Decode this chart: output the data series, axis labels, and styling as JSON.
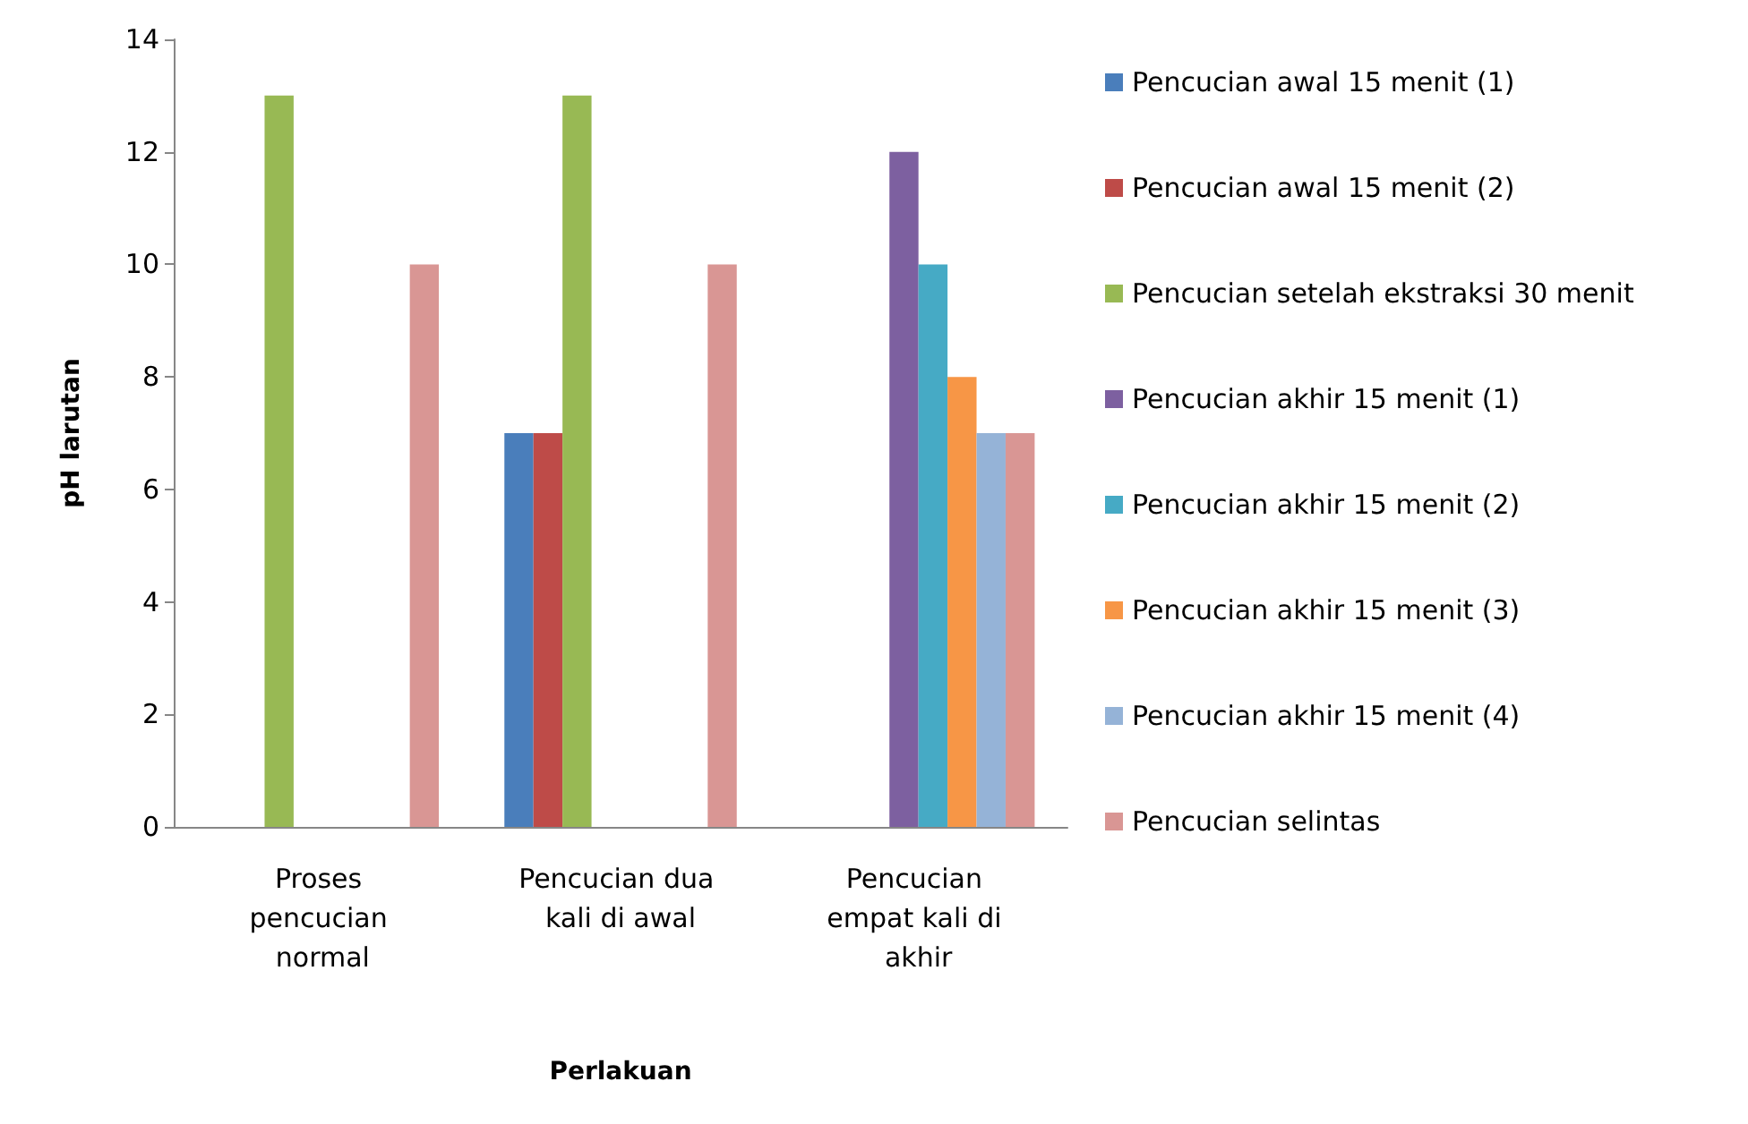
{
  "chart_data": {
    "type": "bar",
    "xlabel": "Perlakuan",
    "ylabel": "pH larutan",
    "categories": [
      "Proses pencucian normal",
      "Pencucian dua kali di awal",
      "Pencucian empat kali di akhir"
    ],
    "series": [
      {
        "name": "Pencucian awal 15 menit (1)",
        "color": "#4a7ebb",
        "values": [
          null,
          7,
          null
        ]
      },
      {
        "name": "Pencucian awal 15 menit (2)",
        "color": "#be4b48",
        "values": [
          null,
          7,
          null
        ]
      },
      {
        "name": "Pencucian setelah ekstraksi 30 menit",
        "color": "#98b954",
        "values": [
          13,
          13,
          null
        ]
      },
      {
        "name": "Pencucian akhir 15 menit (1)",
        "color": "#7d60a0",
        "values": [
          null,
          null,
          12
        ]
      },
      {
        "name": "Pencucian akhir 15 menit (2)",
        "color": "#46aac5",
        "values": [
          null,
          null,
          10
        ]
      },
      {
        "name": "Pencucian akhir 15 menit (3)",
        "color": "#f79646",
        "values": [
          null,
          null,
          8
        ]
      },
      {
        "name": "Pencucian akhir 15 menit (4)",
        "color": "#95b3d7",
        "values": [
          null,
          null,
          7
        ]
      },
      {
        "name": "Pencucian selintas",
        "color": "#d99694",
        "values": [
          10,
          10,
          7
        ]
      }
    ],
    "ylim": [
      0,
      14
    ],
    "yticks": [
      0,
      2,
      4,
      6,
      8,
      10,
      12,
      14
    ],
    "grid": false,
    "legend": "right"
  }
}
